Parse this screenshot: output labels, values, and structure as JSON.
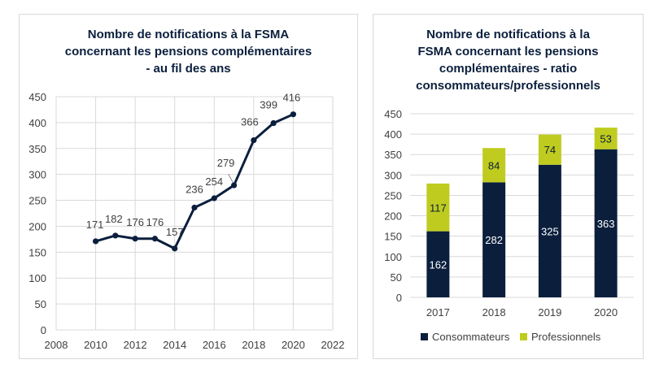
{
  "chart_data": [
    {
      "type": "line",
      "title_lines": [
        "Nombre de notifications à la FSMA",
        "concernant les pensions complémentaires",
        "- au fil des ans"
      ],
      "x": [
        2010,
        2011,
        2012,
        2013,
        2014,
        2015,
        2016,
        2017,
        2018,
        2019,
        2020
      ],
      "values": [
        171,
        182,
        176,
        176,
        157,
        236,
        254,
        279,
        366,
        399,
        416
      ],
      "data_labels": [
        "171",
        "182",
        "176",
        "176",
        "157",
        "236",
        "254",
        "279",
        "366",
        "399",
        "416"
      ],
      "xlim": [
        2008,
        2022
      ],
      "ylim": [
        0,
        450
      ],
      "x_ticks": [
        "2008",
        "2010",
        "2012",
        "2014",
        "2016",
        "2018",
        "2020",
        "2022"
      ],
      "y_ticks": [
        "0",
        "50",
        "100",
        "150",
        "200",
        "250",
        "300",
        "350",
        "400",
        "450"
      ],
      "grid": true,
      "line_color": "#0b1f3d"
    },
    {
      "type": "bar",
      "stacked": true,
      "title_lines": [
        "Nombre de notifications à la",
        "FSMA concernant les pensions",
        "complémentaires - ratio",
        "consommateurs/professionnels"
      ],
      "categories": [
        "2017",
        "2018",
        "2019",
        "2020"
      ],
      "series": [
        {
          "name": "Consommateurs",
          "values": [
            162,
            282,
            325,
            363
          ],
          "labels": [
            "162",
            "282",
            "325",
            "363"
          ],
          "color": "#0b1f3d"
        },
        {
          "name": "Professionnels",
          "values": [
            117,
            84,
            74,
            53
          ],
          "labels": [
            "117",
            "84",
            "74",
            "53"
          ],
          "color": "#bfcc1f"
        }
      ],
      "ylim": [
        0,
        450
      ],
      "y_ticks": [
        "0",
        "50",
        "100",
        "150",
        "200",
        "250",
        "300",
        "350",
        "400",
        "450"
      ],
      "grid": true,
      "legend_position": "bottom"
    }
  ]
}
